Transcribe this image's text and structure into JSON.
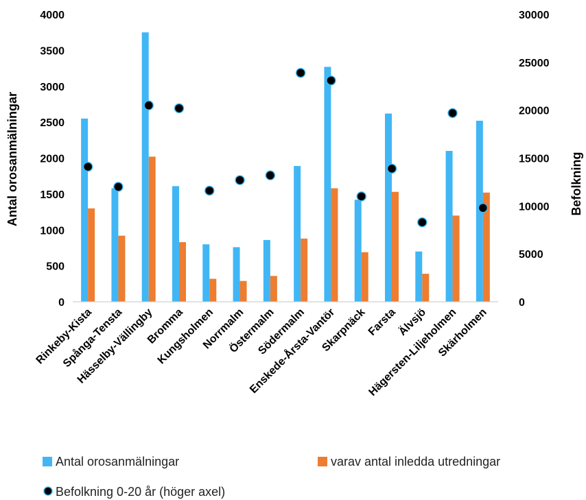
{
  "chart_data": {
    "type": "bar",
    "categories": [
      "Rinkeby-Kista",
      "Spånga-Tensta",
      "Hässelby-Vällingby",
      "Bromma",
      "Kungsholmen",
      "Norrmalm",
      "Östermalm",
      "Södermalm",
      "Enskede-Årsta-Vantör",
      "Skarpnäck",
      "Farsta",
      "Älvsjö",
      "Hägersten-Liljeholmen",
      "Skärholmen"
    ],
    "series": [
      {
        "name": "Antal orosanmälningar",
        "type": "bar",
        "axis": "left",
        "color": "#41B6F5",
        "values": [
          2550,
          1580,
          3750,
          1610,
          800,
          760,
          860,
          1890,
          3270,
          1420,
          2620,
          700,
          2100,
          2520
        ]
      },
      {
        "name": "varav antal inledda utredningar",
        "type": "bar",
        "axis": "left",
        "color": "#ED7D31",
        "values": [
          1300,
          920,
          2020,
          830,
          320,
          290,
          360,
          880,
          1580,
          690,
          1530,
          390,
          1200,
          1520
        ]
      },
      {
        "name": "Befolkning 0-20 år (höger axel)",
        "type": "scatter",
        "axis": "right",
        "color": "#000000",
        "values": [
          14100,
          12000,
          20500,
          20200,
          11600,
          12700,
          13200,
          23900,
          23100,
          11000,
          13900,
          8300,
          19700,
          9800
        ]
      }
    ],
    "ylabel": "Antal orosanmälningar",
    "y2label": "Befolkning",
    "ylim": [
      0,
      4000
    ],
    "y2lim": [
      0,
      30000
    ],
    "yticks": [
      "0",
      "500",
      "1000",
      "1500",
      "2000",
      "2500",
      "3000",
      "3500",
      "4000"
    ],
    "y2ticks": [
      "0",
      "5000",
      "10000",
      "15000",
      "20000",
      "25000",
      "30000"
    ],
    "legend_position": "bottom",
    "grid": false
  }
}
